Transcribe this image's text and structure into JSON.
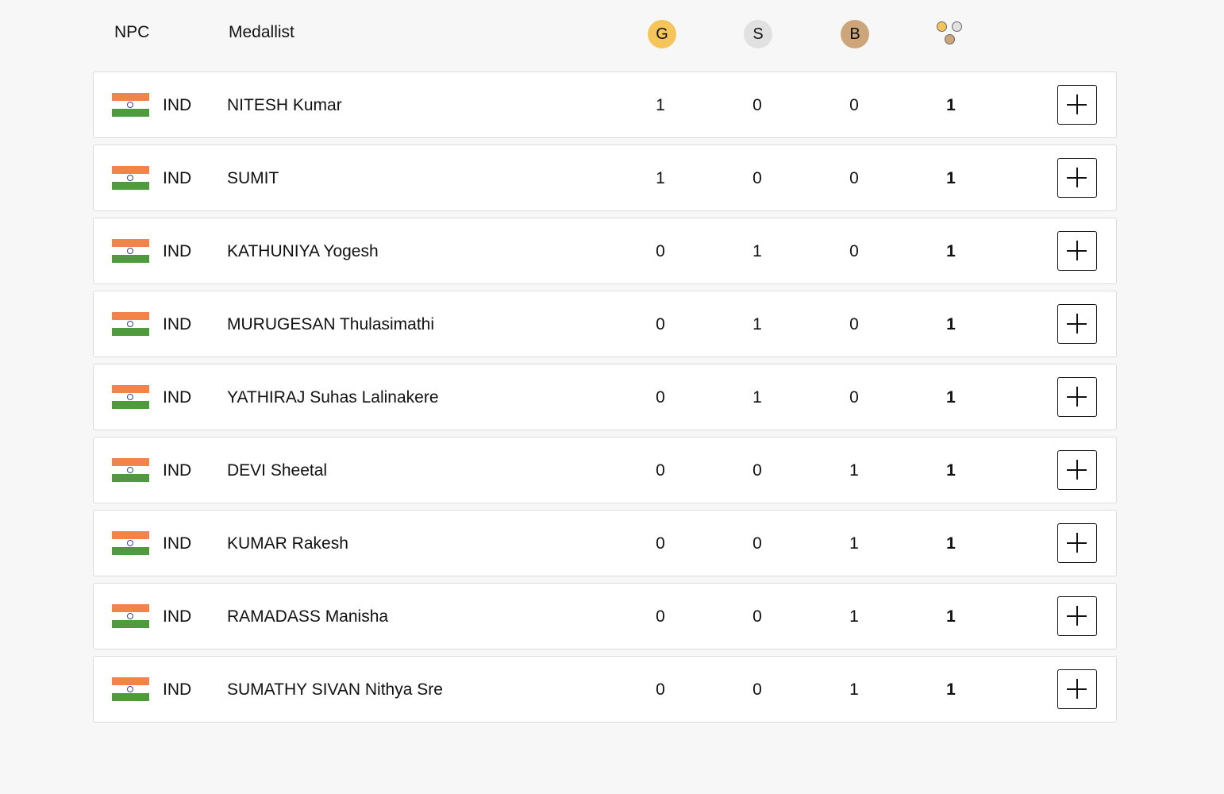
{
  "colors": {
    "gold": "#f5c55b",
    "silver": "#e1e1e1",
    "bronze": "#cda57a",
    "flag_saffron": "#f2834b",
    "flag_green": "#4f9a3c"
  },
  "header": {
    "npc": "NPC",
    "medallist": "Medallist",
    "gold": "G",
    "silver": "S",
    "bronze": "B",
    "total_icon": "medals-total-icon"
  },
  "rows": [
    {
      "npc": "IND",
      "name": "NITESH Kumar",
      "gold": "1",
      "silver": "0",
      "bronze": "0",
      "total": "1"
    },
    {
      "npc": "IND",
      "name": "SUMIT",
      "gold": "1",
      "silver": "0",
      "bronze": "0",
      "total": "1"
    },
    {
      "npc": "IND",
      "name": "KATHUNIYA Yogesh",
      "gold": "0",
      "silver": "1",
      "bronze": "0",
      "total": "1"
    },
    {
      "npc": "IND",
      "name": "MURUGESAN Thulasimathi",
      "gold": "0",
      "silver": "1",
      "bronze": "0",
      "total": "1"
    },
    {
      "npc": "IND",
      "name": "YATHIRAJ Suhas Lalinakere",
      "gold": "0",
      "silver": "1",
      "bronze": "0",
      "total": "1"
    },
    {
      "npc": "IND",
      "name": "DEVI Sheetal",
      "gold": "0",
      "silver": "0",
      "bronze": "1",
      "total": "1"
    },
    {
      "npc": "IND",
      "name": "KUMAR Rakesh",
      "gold": "0",
      "silver": "0",
      "bronze": "1",
      "total": "1"
    },
    {
      "npc": "IND",
      "name": "RAMADASS Manisha",
      "gold": "0",
      "silver": "0",
      "bronze": "1",
      "total": "1"
    },
    {
      "npc": "IND",
      "name": "SUMATHY SIVAN Nithya Sre",
      "gold": "0",
      "silver": "0",
      "bronze": "1",
      "total": "1"
    }
  ]
}
